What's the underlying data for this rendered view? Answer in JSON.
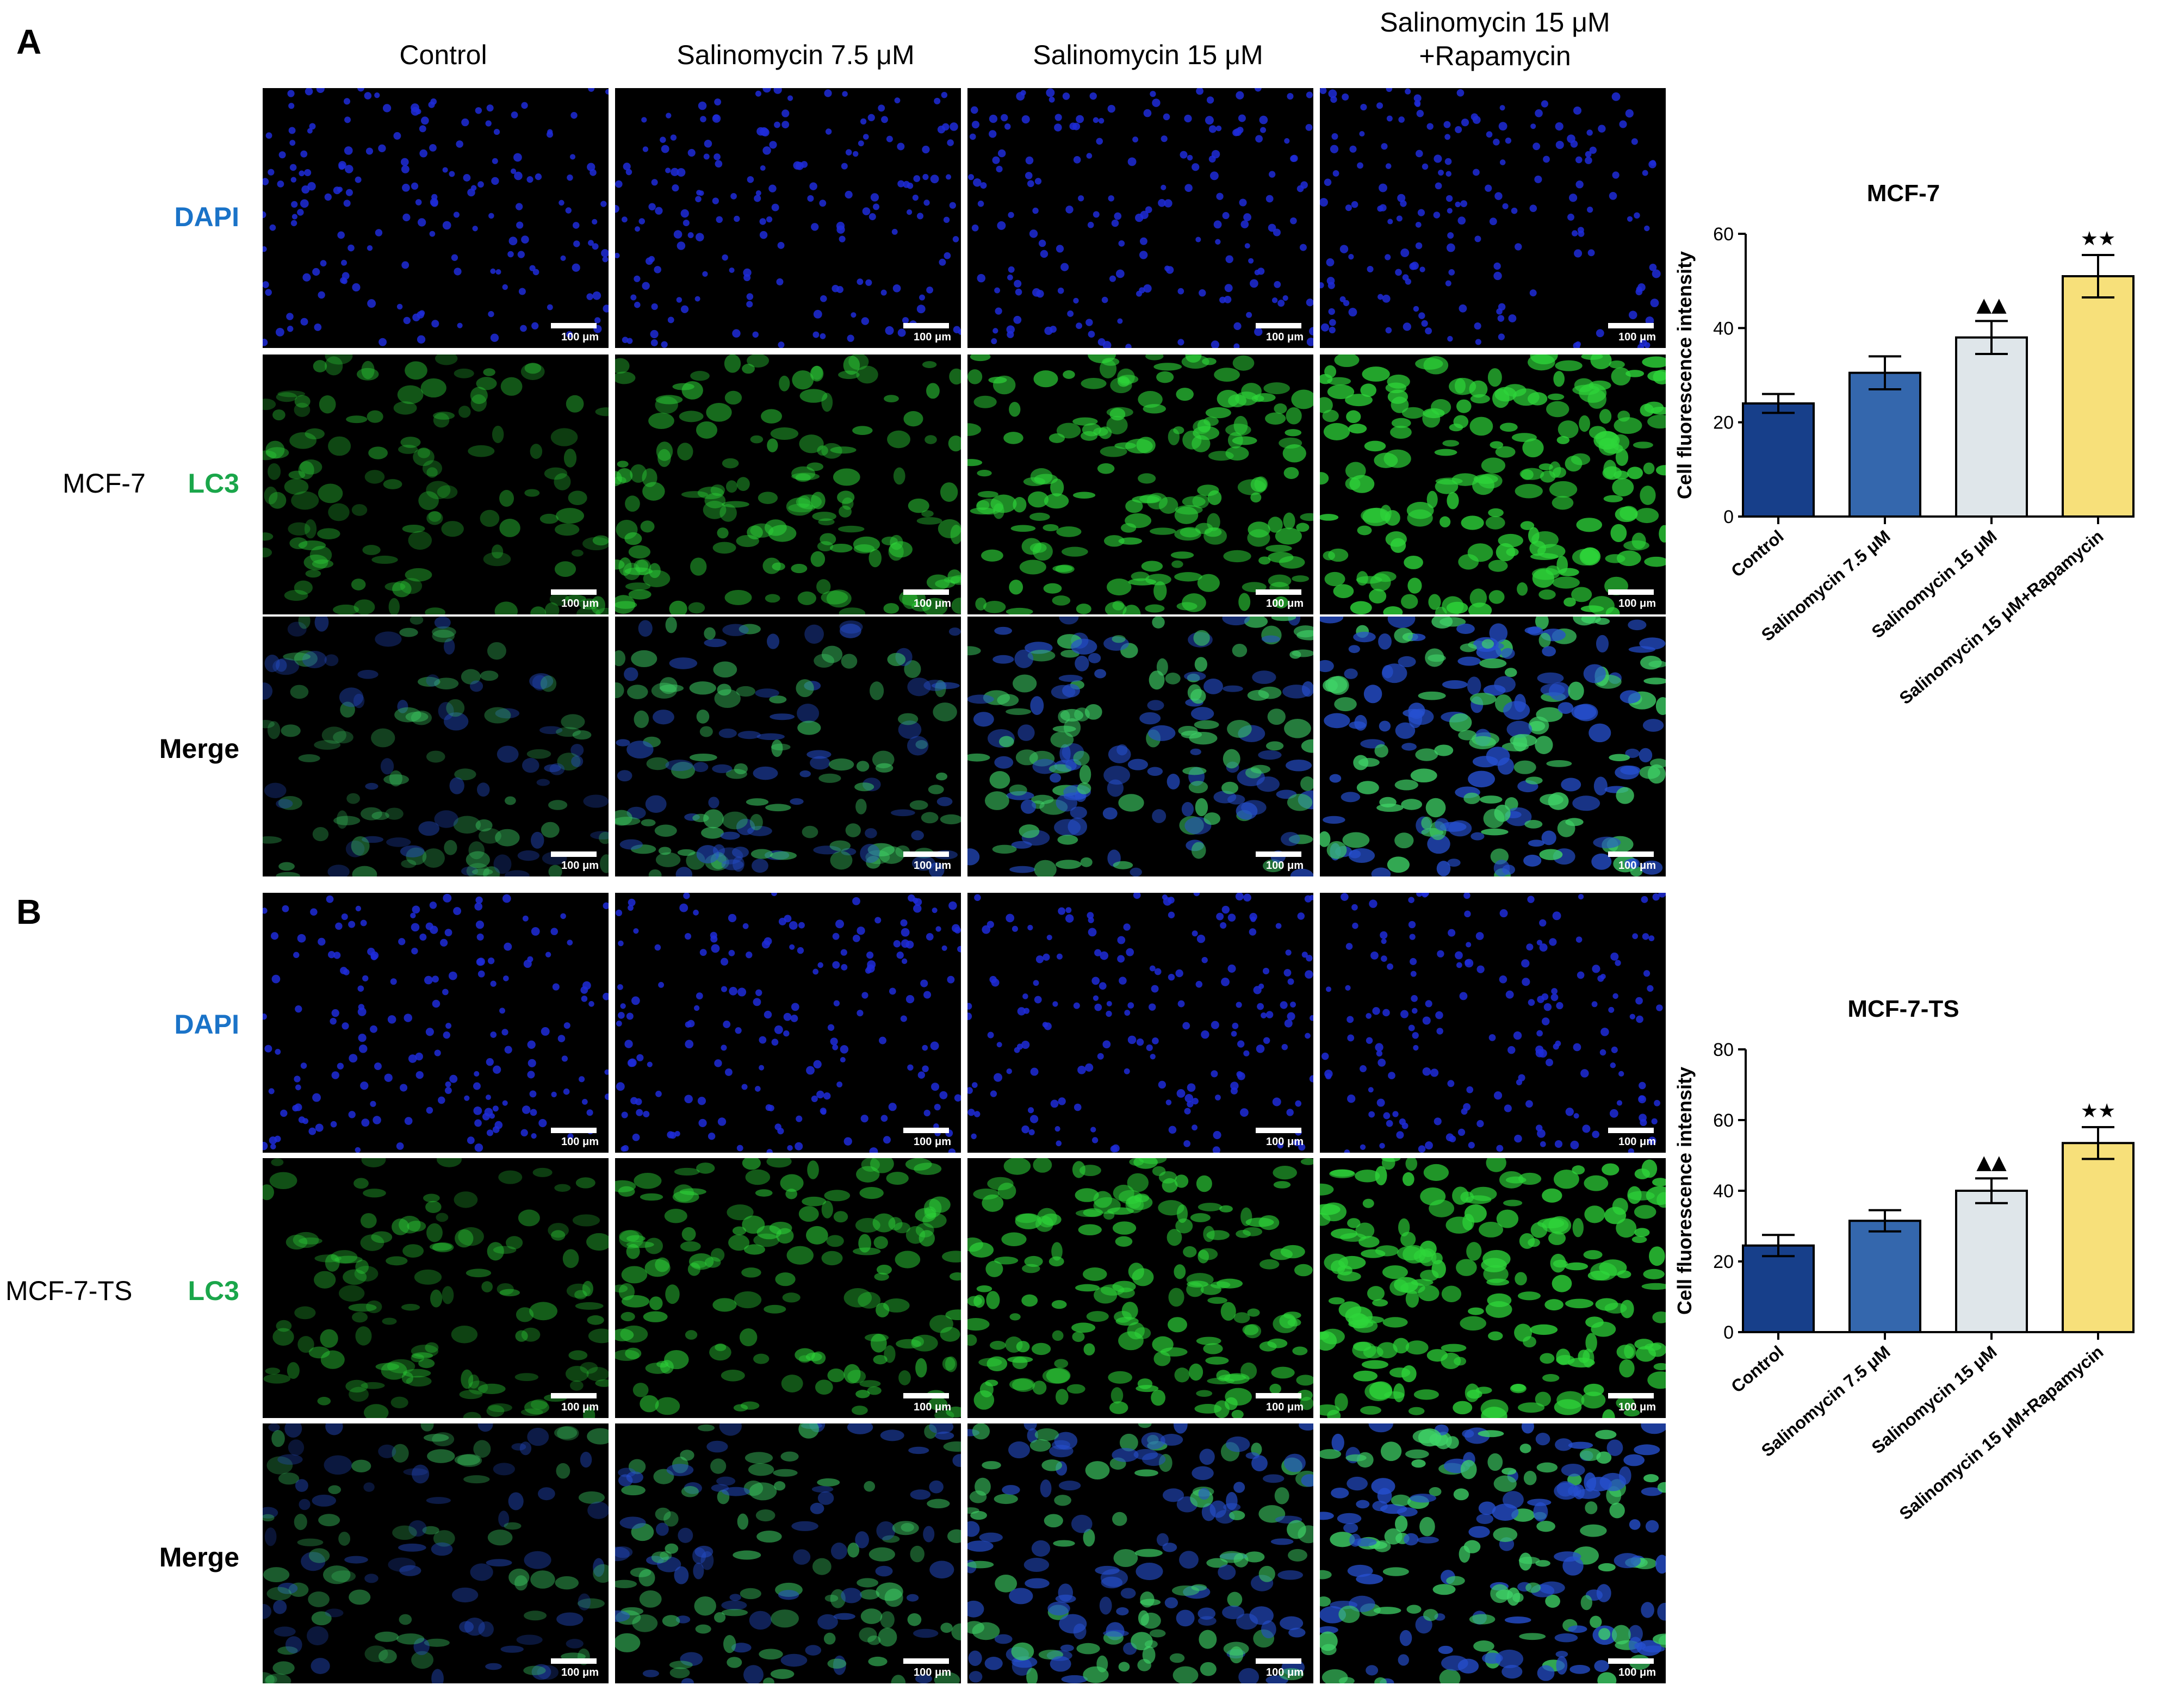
{
  "panels": [
    {
      "letter": "A",
      "cell_line": "MCF-7"
    },
    {
      "letter": "B",
      "cell_line": "MCF-7-TS"
    }
  ],
  "columns": [
    "Control",
    "Salinomycin 7.5 μM",
    "Salinomycin 15 μM",
    "Salinomycin 15 μM\n+Rapamycin"
  ],
  "rows": [
    {
      "label": "DAPI",
      "color": "#1a73c8"
    },
    {
      "label": "LC3",
      "color": "#1aa64a"
    },
    {
      "label": "Merge",
      "color": "#000000"
    }
  ],
  "scale_bar_label": "100 μm",
  "colors": {
    "dapi": "#1f2bd8",
    "lc3": "#2ed63a",
    "merge_blue": "#2650d0",
    "merge_green": "#3fd468"
  },
  "chart_data": [
    {
      "type": "bar",
      "title": "MCF-7",
      "ylabel": "Cell fluorescence intensity",
      "categories": [
        "Control",
        "Salinomycin 7.5 μM",
        "Salinomycin 15 μM",
        "Salinomycin 15 μM+Rapamycin"
      ],
      "values": [
        24,
        30.5,
        38,
        51
      ],
      "errors": [
        2,
        3.5,
        3.5,
        4.5
      ],
      "markers": [
        "",
        "",
        "▲▲",
        "★★"
      ],
      "bar_colors": [
        "#173f8a",
        "#3467ad",
        "#dfe6ea",
        "#f7e07a"
      ],
      "ylim": [
        0,
        60
      ],
      "yticks": [
        0,
        20,
        40,
        60
      ]
    },
    {
      "type": "bar",
      "title": "MCF-7-TS",
      "ylabel": "Cell fluorescence intensity",
      "categories": [
        "Control",
        "Salinomycin 7.5 μM",
        "Salinomycin 15 μM",
        "Salinomycin 15 μM+Rapamycin"
      ],
      "values": [
        24.5,
        31.5,
        40,
        53.5
      ],
      "errors": [
        3,
        3,
        3.5,
        4.5
      ],
      "markers": [
        "",
        "",
        "▲▲",
        "★★"
      ],
      "bar_colors": [
        "#173f8a",
        "#3467ad",
        "#dfe6ea",
        "#f7e07a"
      ],
      "ylim": [
        0,
        80
      ],
      "yticks": [
        0,
        20,
        40,
        60,
        80
      ]
    }
  ]
}
